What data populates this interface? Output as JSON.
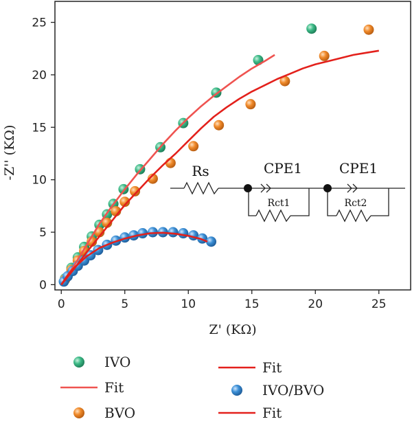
{
  "chart_data": {
    "type": "scatter",
    "xlabel": "Z' (KΩ)",
    "ylabel": "-Z'' (KΩ)",
    "xlim": [
      -0.5,
      27.5
    ],
    "ylim": [
      -0.5,
      27
    ],
    "xticks": [
      0,
      5,
      10,
      15,
      20,
      25
    ],
    "yticks": [
      0,
      5,
      10,
      15,
      20,
      25
    ],
    "grid": false,
    "legend_position": "bottom",
    "series": [
      {
        "name": "IVO",
        "kind": "scatter",
        "color": "#3dba87",
        "points": [
          [
            0.3,
            0.6
          ],
          [
            0.8,
            1.6
          ],
          [
            1.3,
            2.6
          ],
          [
            1.8,
            3.6
          ],
          [
            2.4,
            4.6
          ],
          [
            3.0,
            5.7
          ],
          [
            3.6,
            6.7
          ],
          [
            4.1,
            7.7
          ],
          [
            4.9,
            9.1
          ],
          [
            6.2,
            11.0
          ],
          [
            7.8,
            13.1
          ],
          [
            9.6,
            15.4
          ],
          [
            12.2,
            18.3
          ],
          [
            15.5,
            21.4
          ],
          [
            19.7,
            24.4
          ]
        ]
      },
      {
        "name": "Fit",
        "kind": "line",
        "color": "#ef5350",
        "points": [
          [
            0,
            0
          ],
          [
            1,
            1.8
          ],
          [
            2,
            3.8
          ],
          [
            3,
            5.8
          ],
          [
            4,
            7.5
          ],
          [
            5,
            9.1
          ],
          [
            6,
            10.6
          ],
          [
            7,
            12.0
          ],
          [
            8,
            13.4
          ],
          [
            9,
            14.7
          ],
          [
            10,
            15.9
          ],
          [
            11,
            17.0
          ],
          [
            12,
            18.0
          ],
          [
            13,
            18.9
          ],
          [
            14,
            19.8
          ],
          [
            15,
            20.6
          ],
          [
            16,
            21.3
          ],
          [
            16.8,
            21.9
          ]
        ]
      },
      {
        "name": "BVO",
        "kind": "scatter",
        "color": "#f08a2a",
        "points": [
          [
            0.3,
            0.5
          ],
          [
            0.8,
            1.4
          ],
          [
            1.3,
            2.3
          ],
          [
            1.8,
            3.2
          ],
          [
            2.4,
            4.1
          ],
          [
            3.0,
            5.0
          ],
          [
            3.6,
            5.9
          ],
          [
            4.3,
            7.0
          ],
          [
            5.0,
            7.9
          ],
          [
            5.8,
            8.9
          ],
          [
            7.2,
            10.1
          ],
          [
            8.6,
            11.6
          ],
          [
            10.4,
            13.2
          ],
          [
            12.4,
            15.2
          ],
          [
            14.9,
            17.2
          ],
          [
            17.6,
            19.4
          ],
          [
            20.7,
            21.8
          ],
          [
            24.2,
            24.3
          ]
        ]
      },
      {
        "name": "IVO/BVO",
        "kind": "scatter",
        "color": "#3b8fd6",
        "points": [
          [
            0.2,
            0.3
          ],
          [
            0.5,
            0.8
          ],
          [
            0.9,
            1.3
          ],
          [
            1.3,
            1.8
          ],
          [
            1.8,
            2.3
          ],
          [
            2.3,
            2.8
          ],
          [
            2.9,
            3.3
          ],
          [
            3.6,
            3.8
          ],
          [
            4.3,
            4.2
          ],
          [
            5.0,
            4.5
          ],
          [
            5.7,
            4.7
          ],
          [
            6.4,
            4.9
          ],
          [
            7.2,
            5.0
          ],
          [
            8.0,
            5.0
          ],
          [
            8.8,
            5.0
          ],
          [
            9.6,
            4.9
          ],
          [
            10.4,
            4.7
          ],
          [
            11.1,
            4.4
          ],
          [
            11.8,
            4.1
          ]
        ]
      },
      {
        "name": "Fit",
        "kind": "line",
        "color": "#e3201b",
        "points": [
          [
            0,
            0
          ],
          [
            1,
            1.5
          ],
          [
            2,
            3.1
          ],
          [
            3,
            4.6
          ],
          [
            4,
            6.1
          ],
          [
            5,
            7.6
          ],
          [
            6,
            8.9
          ],
          [
            7,
            10.2
          ],
          [
            8,
            11.4
          ],
          [
            9,
            12.5
          ],
          [
            10,
            13.7
          ],
          [
            11,
            14.9
          ],
          [
            12,
            16.0
          ],
          [
            13,
            16.9
          ],
          [
            14,
            17.7
          ],
          [
            15,
            18.4
          ],
          [
            16,
            19.0
          ],
          [
            17,
            19.6
          ],
          [
            18,
            20.1
          ],
          [
            19,
            20.6
          ],
          [
            20,
            21.0
          ],
          [
            21,
            21.3
          ],
          [
            22,
            21.6
          ],
          [
            23,
            21.9
          ],
          [
            24,
            22.1
          ],
          [
            25,
            22.3
          ]
        ]
      },
      {
        "name": "Fit",
        "kind": "line",
        "color": "#e3201b",
        "points": [
          [
            0,
            0
          ],
          [
            0.5,
            0.9
          ],
          [
            1,
            1.6
          ],
          [
            2,
            2.7
          ],
          [
            3,
            3.5
          ],
          [
            4,
            4.0
          ],
          [
            5,
            4.4
          ],
          [
            6,
            4.7
          ],
          [
            7,
            4.9
          ],
          [
            8,
            4.95
          ],
          [
            9,
            4.85
          ],
          [
            10,
            4.65
          ],
          [
            11,
            4.35
          ],
          [
            11.5,
            4.1
          ]
        ]
      }
    ]
  },
  "circuit": {
    "labels": [
      "Rs",
      "CPE1",
      "CPE1",
      "Rct1",
      "Rct2"
    ]
  },
  "legend": [
    {
      "label": "IVO",
      "marker": "circle",
      "color": "#3dba87"
    },
    {
      "label": "Fit",
      "marker": "line",
      "color": "#ef5350"
    },
    {
      "label": "BVO",
      "marker": "circle",
      "color": "#f08a2a"
    },
    {
      "label": "Fit",
      "marker": "line",
      "color": "#e3201b"
    },
    {
      "label": "IVO/BVO",
      "marker": "circle",
      "color": "#3b8fd6"
    },
    {
      "label": "Fit",
      "marker": "line",
      "color": "#e3201b"
    }
  ]
}
